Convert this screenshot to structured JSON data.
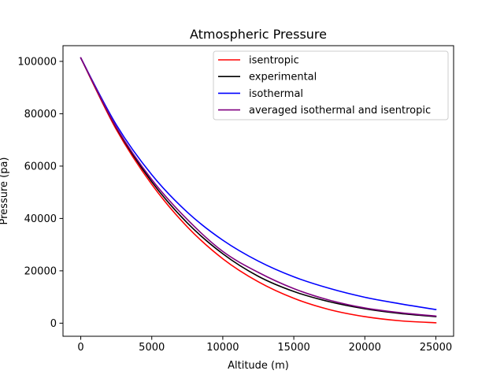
{
  "chart_data": {
    "type": "line",
    "title": "Atmospheric Pressure",
    "xlabel": "Altitude (m)",
    "ylabel": "Pressure (pa)",
    "xlim": [
      -1250,
      26250
    ],
    "ylim": [
      -5000,
      106000
    ],
    "xticks": [
      0,
      5000,
      10000,
      15000,
      20000,
      25000
    ],
    "yticks": [
      0,
      20000,
      40000,
      60000,
      80000,
      100000
    ],
    "grid": false,
    "legend_position": "top-right",
    "x": [
      0,
      2500,
      5000,
      7500,
      10000,
      12500,
      15000,
      17500,
      20000,
      22500,
      25000
    ],
    "series": [
      {
        "name": "isentropic",
        "color": "#ff0000",
        "values": [
          101325,
          74000,
          53000,
          36800,
          24600,
          15800,
          9500,
          5200,
          2500,
          900,
          150
        ]
      },
      {
        "name": "experimental",
        "color": "#000000",
        "values": [
          101325,
          74700,
          54000,
          38300,
          26500,
          17900,
          12100,
          8200,
          5500,
          3700,
          2500
        ]
      },
      {
        "name": "isothermal",
        "color": "#0000ff",
        "values": [
          101325,
          75800,
          56700,
          42400,
          31700,
          23700,
          17700,
          13300,
          9900,
          7400,
          5200
        ]
      },
      {
        "name": "averaged isothermal and isentropic",
        "color": "#800080",
        "values": [
          101325,
          74900,
          54850,
          39600,
          27400,
          19400,
          13200,
          8800,
          5800,
          4000,
          2700
        ]
      }
    ]
  }
}
